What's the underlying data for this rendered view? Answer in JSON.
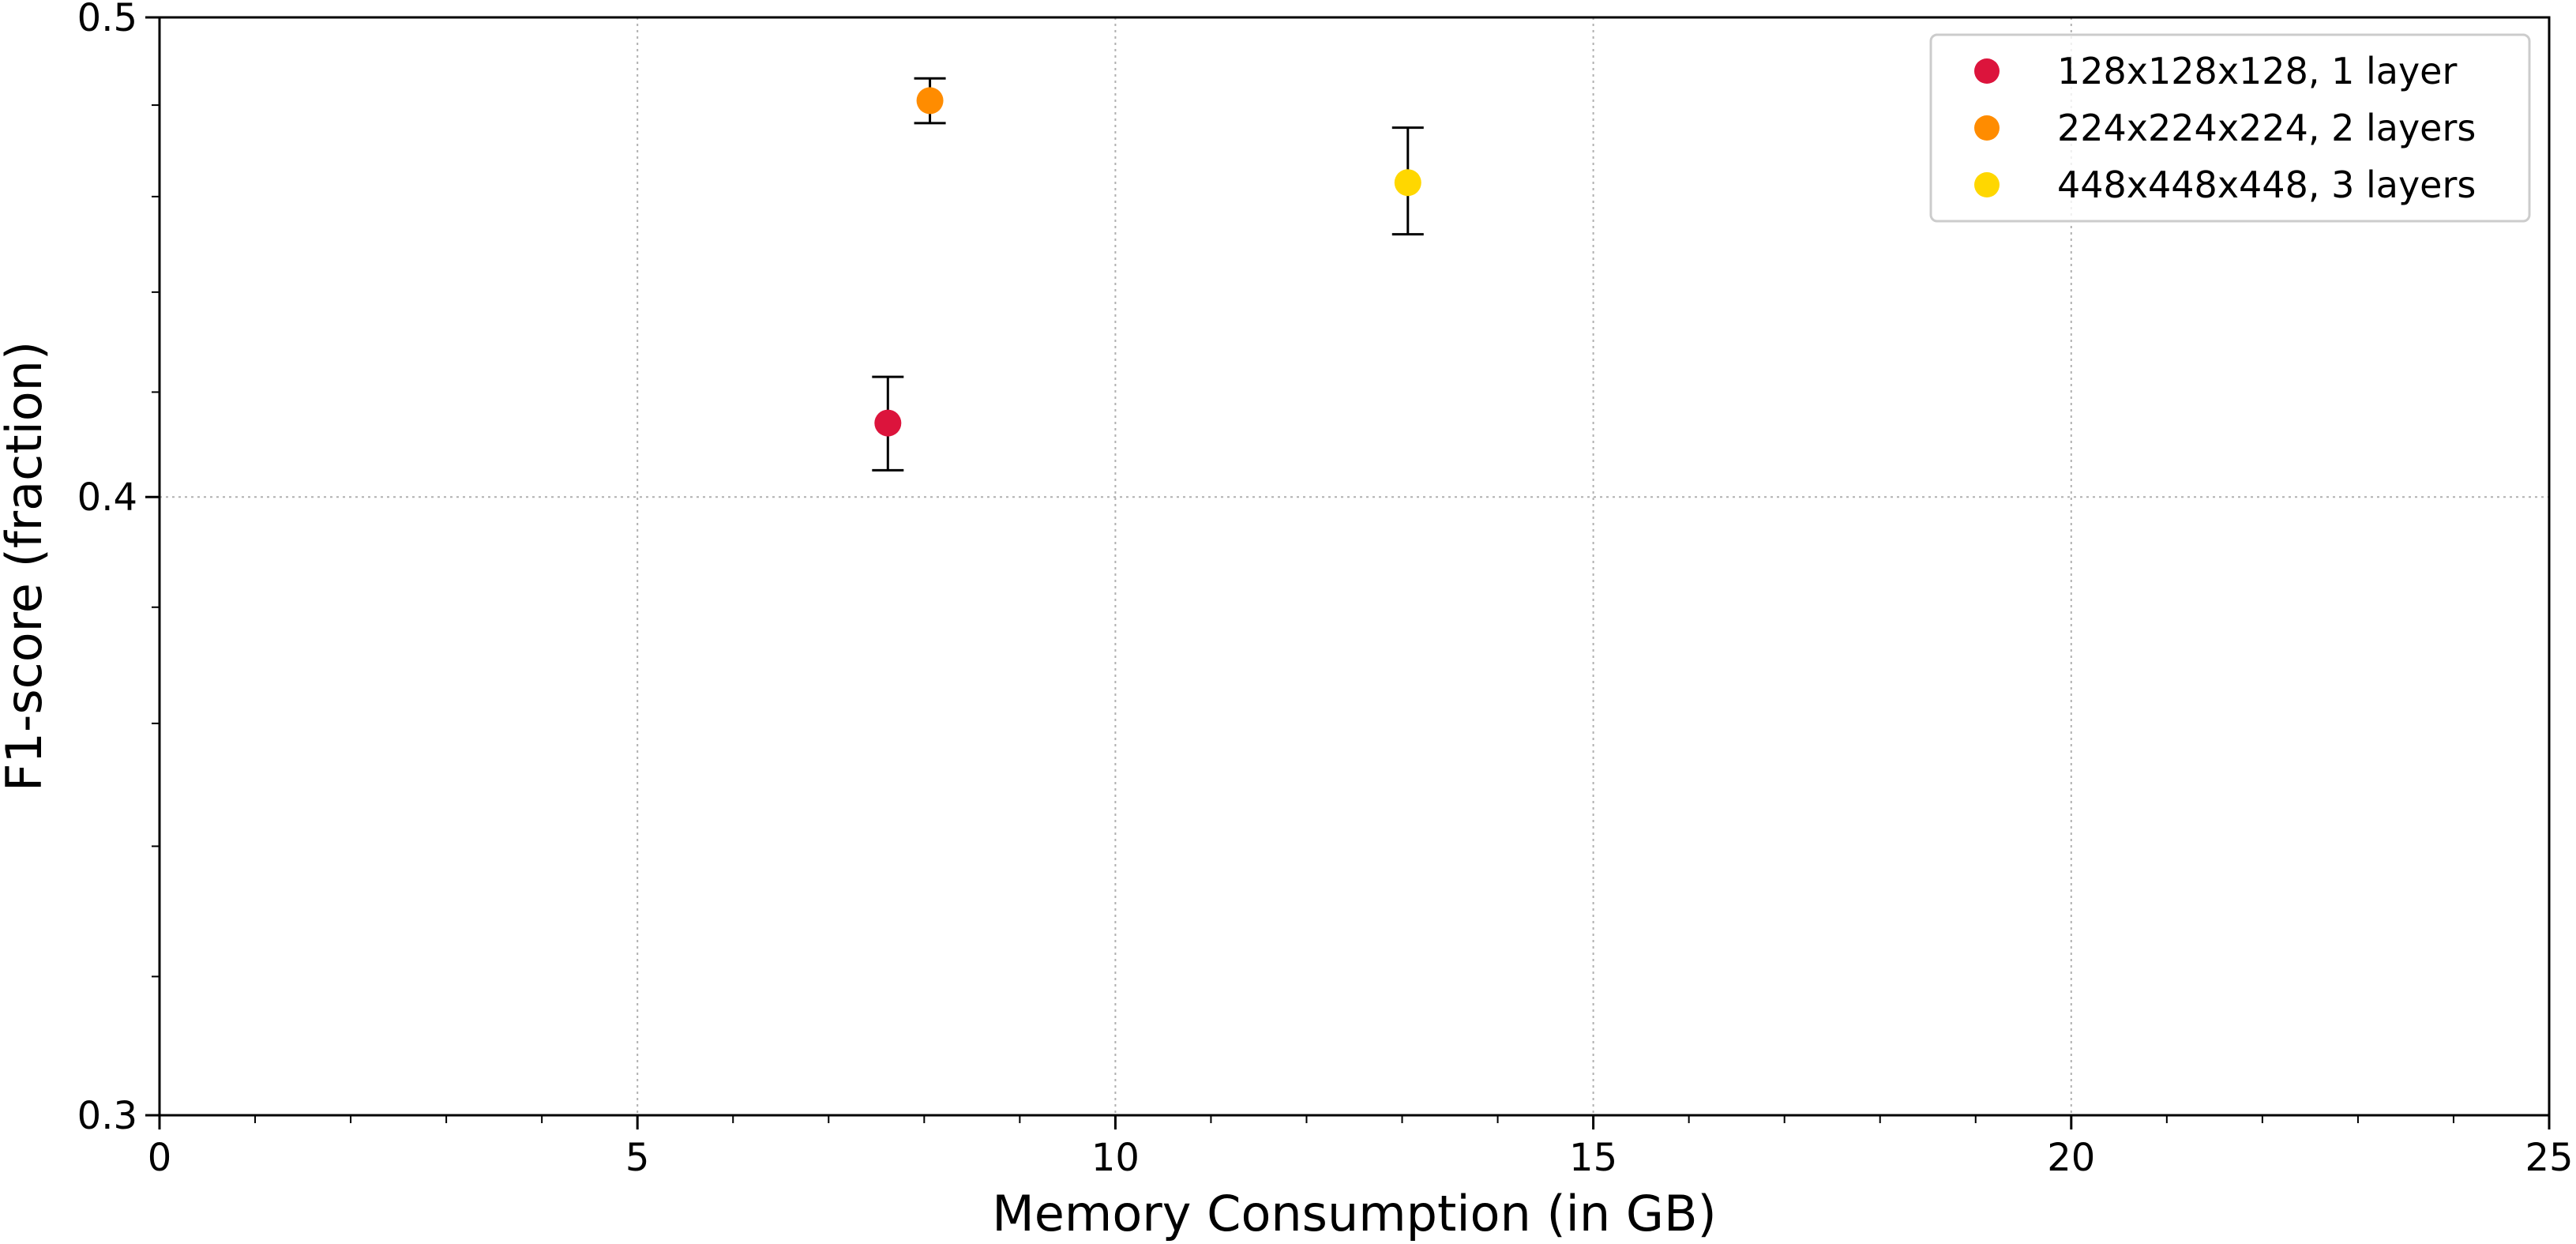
{
  "chart_data": {
    "type": "scatter",
    "title": "",
    "xlabel": "Memory Consumption (in GB)",
    "ylabel": "F1-score (fraction)",
    "xlim": [
      0,
      25
    ],
    "ylim": [
      0.3,
      0.5
    ],
    "y_scale": "log",
    "x_ticks": [
      0,
      5,
      10,
      15,
      20,
      25
    ],
    "x_tick_labels": [
      "0",
      "5",
      "10",
      "15",
      "20",
      "25"
    ],
    "y_ticks": [
      0.3,
      0.4,
      0.5
    ],
    "y_tick_labels": [
      "0.3",
      "0.4",
      "0.5"
    ],
    "grid": true,
    "legend_position": "top-right",
    "series": [
      {
        "name": "128x128x128, 1 layer",
        "color": "#dc143c",
        "x": [
          7.62
        ],
        "y": [
          0.414
        ],
        "y_err_low": [
          0.405
        ],
        "y_err_high": [
          0.423
        ]
      },
      {
        "name": "224x224x224, 2 layers",
        "color": "#ff8c00",
        "x": [
          8.06
        ],
        "y": [
          0.481
        ],
        "y_err_low": [
          0.476
        ],
        "y_err_high": [
          0.486
        ]
      },
      {
        "name": "448x448x448, 3 layers",
        "color": "#ffd700",
        "x": [
          13.06
        ],
        "y": [
          0.463
        ],
        "y_err_low": [
          0.452
        ],
        "y_err_high": [
          0.475
        ]
      }
    ]
  }
}
